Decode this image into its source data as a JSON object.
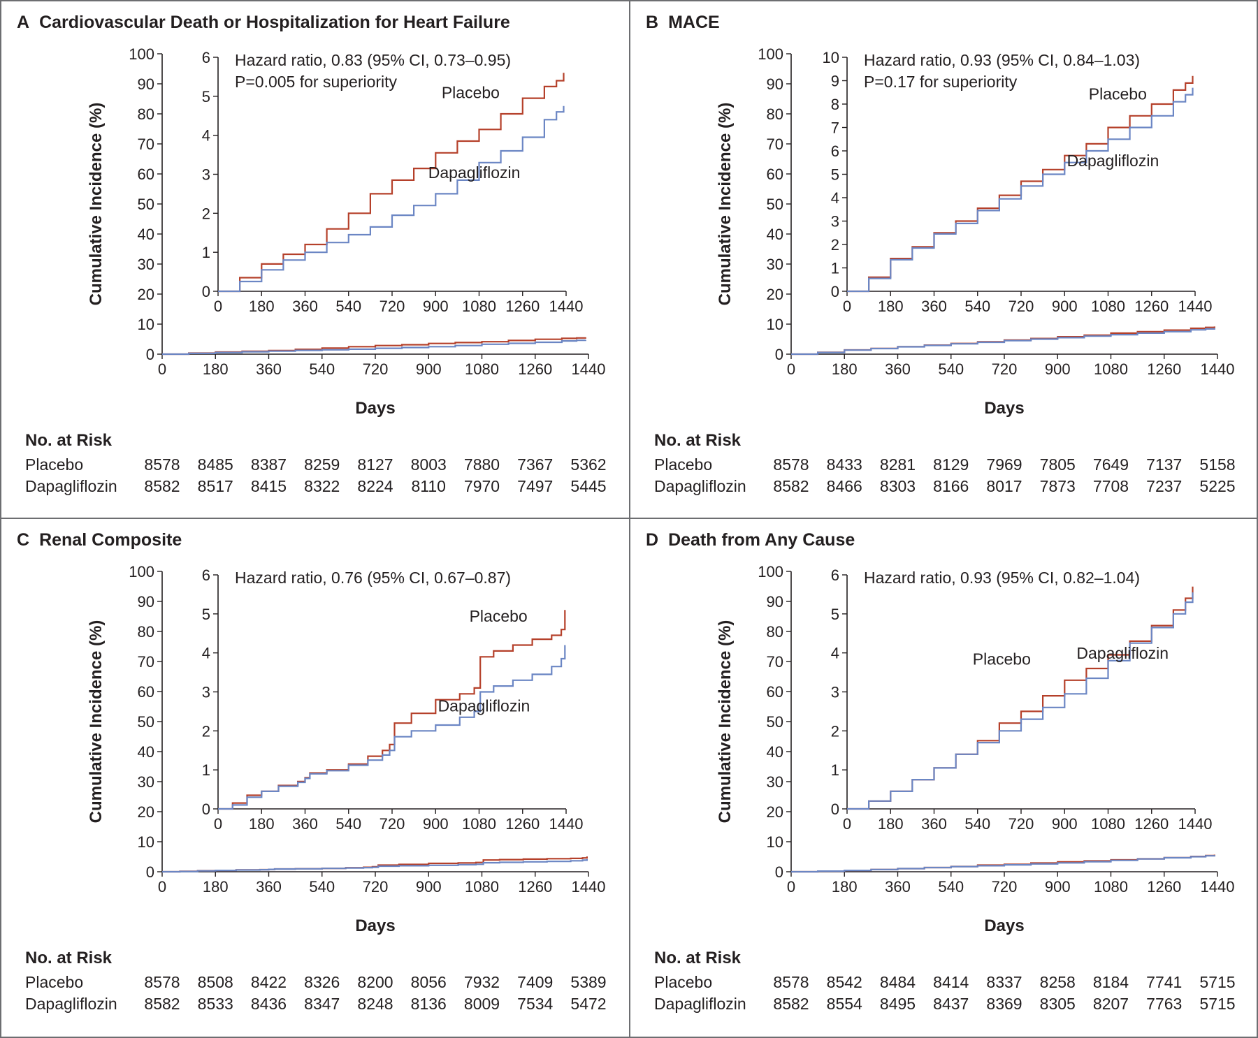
{
  "figure": {
    "colors": {
      "placebo": "#b5402a",
      "dapagliflozin": "#6b86c4"
    },
    "axis_label_y": "Cumulative Incidence (%)",
    "axis_label_x": "Days",
    "risk_header": "No. at Risk"
  },
  "chart_data": [
    {
      "type": "line",
      "panel_letter": "A",
      "title": "Cardiovascular Death or Hospitalization for Heart Failure",
      "xlabel": "Days",
      "ylabel": "Cumulative Incidence (%)",
      "xlim": [
        0,
        1440
      ],
      "ylim": [
        0,
        100
      ],
      "x_ticks": [
        0,
        180,
        360,
        540,
        720,
        900,
        1080,
        1260,
        1440
      ],
      "y_ticks": [
        0,
        10,
        20,
        30,
        40,
        50,
        60,
        70,
        80,
        90,
        100
      ],
      "inset": {
        "xlim": [
          0,
          1440
        ],
        "ylim": [
          0,
          6
        ],
        "x_ticks": [
          0,
          180,
          360,
          540,
          720,
          900,
          1080,
          1260,
          1440
        ],
        "y_ticks": [
          0,
          1,
          2,
          3,
          4,
          5,
          6
        ],
        "annotation": [
          "Hazard ratio, 0.83 (95% CI, 0.73–0.95)",
          "P=0.005 for superiority"
        ],
        "labels": [
          {
            "text": "Placebo",
            "x": 1045,
            "y": 4.95
          },
          {
            "text": "Dapagliflozin",
            "x": 1060,
            "y": 2.9
          }
        ]
      },
      "series": [
        {
          "name": "Placebo",
          "x": [
            0,
            90,
            180,
            270,
            360,
            450,
            540,
            630,
            720,
            810,
            900,
            990,
            1080,
            1170,
            1260,
            1350,
            1400,
            1430
          ],
          "y": [
            0,
            0.35,
            0.7,
            0.95,
            1.2,
            1.6,
            2.0,
            2.5,
            2.85,
            3.15,
            3.55,
            3.85,
            4.15,
            4.55,
            4.95,
            5.25,
            5.4,
            5.6
          ]
        },
        {
          "name": "Dapagliflozin",
          "x": [
            0,
            90,
            180,
            270,
            360,
            450,
            540,
            630,
            720,
            810,
            900,
            990,
            1080,
            1170,
            1260,
            1350,
            1400,
            1430
          ],
          "y": [
            0,
            0.25,
            0.55,
            0.8,
            1.0,
            1.25,
            1.45,
            1.65,
            1.95,
            2.2,
            2.5,
            2.85,
            3.3,
            3.6,
            3.95,
            4.4,
            4.6,
            4.75
          ]
        }
      ],
      "risk": {
        "days": [
          0,
          180,
          360,
          540,
          720,
          900,
          1080,
          1260,
          1440
        ],
        "rows": [
          {
            "label": "Placebo",
            "values": [
              "8578",
              "8485",
              "8387",
              "8259",
              "8127",
              "8003",
              "7880",
              "7367",
              "5362"
            ]
          },
          {
            "label": "Dapagliflozin",
            "values": [
              "8582",
              "8517",
              "8415",
              "8322",
              "8224",
              "8110",
              "7970",
              "7497",
              "5445"
            ]
          }
        ]
      }
    },
    {
      "type": "line",
      "panel_letter": "B",
      "title": "MACE",
      "xlabel": "Days",
      "ylabel": "Cumulative Incidence (%)",
      "xlim": [
        0,
        1440
      ],
      "ylim": [
        0,
        100
      ],
      "x_ticks": [
        0,
        180,
        360,
        540,
        720,
        900,
        1080,
        1260,
        1440
      ],
      "y_ticks": [
        0,
        10,
        20,
        30,
        40,
        50,
        60,
        70,
        80,
        90,
        100
      ],
      "inset": {
        "xlim": [
          0,
          1440
        ],
        "ylim": [
          0,
          10
        ],
        "x_ticks": [
          0,
          180,
          360,
          540,
          720,
          900,
          1080,
          1260,
          1440
        ],
        "y_ticks": [
          0,
          1,
          2,
          3,
          4,
          5,
          6,
          7,
          8,
          9,
          10
        ],
        "annotation": [
          "Hazard ratio, 0.93 (95% CI, 0.84–1.03)",
          "P=0.17 for superiority"
        ],
        "labels": [
          {
            "text": "Placebo",
            "x": 1120,
            "y": 8.2
          },
          {
            "text": "Dapagliflozin",
            "x": 1100,
            "y": 5.35
          }
        ]
      },
      "series": [
        {
          "name": "Placebo",
          "x": [
            0,
            90,
            180,
            270,
            360,
            450,
            540,
            630,
            720,
            810,
            900,
            990,
            1080,
            1170,
            1260,
            1350,
            1400,
            1430
          ],
          "y": [
            0,
            0.6,
            1.4,
            1.9,
            2.5,
            3.0,
            3.55,
            4.1,
            4.7,
            5.2,
            5.8,
            6.3,
            7.0,
            7.5,
            8.0,
            8.6,
            8.9,
            9.2
          ]
        },
        {
          "name": "Dapagliflozin",
          "x": [
            0,
            90,
            180,
            270,
            360,
            450,
            540,
            630,
            720,
            810,
            900,
            990,
            1080,
            1170,
            1260,
            1350,
            1400,
            1430
          ],
          "y": [
            0,
            0.55,
            1.35,
            1.85,
            2.45,
            2.9,
            3.45,
            3.95,
            4.5,
            5.0,
            5.5,
            6.0,
            6.5,
            7.0,
            7.5,
            8.1,
            8.4,
            8.7
          ]
        }
      ],
      "risk": {
        "days": [
          0,
          180,
          360,
          540,
          720,
          900,
          1080,
          1260,
          1440
        ],
        "rows": [
          {
            "label": "Placebo",
            "values": [
              "8578",
              "8433",
              "8281",
              "8129",
              "7969",
              "7805",
              "7649",
              "7137",
              "5158"
            ]
          },
          {
            "label": "Dapagliflozin",
            "values": [
              "8582",
              "8466",
              "8303",
              "8166",
              "8017",
              "7873",
              "7708",
              "7237",
              "5225"
            ]
          }
        ]
      }
    },
    {
      "type": "line",
      "panel_letter": "C",
      "title": "Renal Composite",
      "xlabel": "Days",
      "ylabel": "Cumulative Incidence (%)",
      "xlim": [
        0,
        1440
      ],
      "ylim": [
        0,
        100
      ],
      "x_ticks": [
        0,
        180,
        360,
        540,
        720,
        900,
        1080,
        1260,
        1440
      ],
      "y_ticks": [
        0,
        10,
        20,
        30,
        40,
        50,
        60,
        70,
        80,
        90,
        100
      ],
      "inset": {
        "xlim": [
          0,
          1440
        ],
        "ylim": [
          0,
          6
        ],
        "x_ticks": [
          0,
          180,
          360,
          540,
          720,
          900,
          1080,
          1260,
          1440
        ],
        "y_ticks": [
          0,
          1,
          2,
          3,
          4,
          5,
          6
        ],
        "annotation": [
          "Hazard ratio, 0.76 (95% CI, 0.67–0.87)"
        ],
        "labels": [
          {
            "text": "Placebo",
            "x": 1160,
            "y": 4.8
          },
          {
            "text": "Dapagliflozin",
            "x": 1100,
            "y": 2.5
          }
        ]
      },
      "series": [
        {
          "name": "Placebo",
          "x": [
            0,
            60,
            120,
            180,
            250,
            330,
            360,
            380,
            450,
            540,
            620,
            680,
            710,
            730,
            800,
            900,
            1000,
            1060,
            1085,
            1140,
            1220,
            1300,
            1380,
            1420,
            1435
          ],
          "y": [
            0,
            0.15,
            0.35,
            0.45,
            0.6,
            0.7,
            0.8,
            0.92,
            1.0,
            1.15,
            1.35,
            1.5,
            1.65,
            2.2,
            2.45,
            2.8,
            2.95,
            3.1,
            3.9,
            4.05,
            4.2,
            4.35,
            4.45,
            4.6,
            5.1
          ]
        },
        {
          "name": "Dapagliflozin",
          "x": [
            0,
            60,
            120,
            180,
            250,
            330,
            360,
            380,
            450,
            540,
            620,
            680,
            710,
            730,
            800,
            900,
            1000,
            1060,
            1085,
            1140,
            1220,
            1300,
            1380,
            1420,
            1435
          ],
          "y": [
            0,
            0.1,
            0.3,
            0.45,
            0.58,
            0.68,
            0.78,
            0.9,
            0.98,
            1.12,
            1.25,
            1.38,
            1.5,
            1.85,
            2.0,
            2.15,
            2.35,
            2.5,
            3.0,
            3.15,
            3.3,
            3.45,
            3.65,
            3.85,
            4.2
          ]
        }
      ],
      "risk": {
        "days": [
          0,
          180,
          360,
          540,
          720,
          900,
          1080,
          1260,
          1440
        ],
        "rows": [
          {
            "label": "Placebo",
            "values": [
              "8578",
              "8508",
              "8422",
              "8326",
              "8200",
              "8056",
              "7932",
              "7409",
              "5389"
            ]
          },
          {
            "label": "Dapagliflozin",
            "values": [
              "8582",
              "8533",
              "8436",
              "8347",
              "8248",
              "8136",
              "8009",
              "7534",
              "5472"
            ]
          }
        ]
      }
    },
    {
      "type": "line",
      "panel_letter": "D",
      "title": "Death from Any Cause",
      "xlabel": "Days",
      "ylabel": "Cumulative Incidence (%)",
      "xlim": [
        0,
        1440
      ],
      "ylim": [
        0,
        100
      ],
      "x_ticks": [
        0,
        180,
        360,
        540,
        720,
        900,
        1080,
        1260,
        1440
      ],
      "y_ticks": [
        0,
        10,
        20,
        30,
        40,
        50,
        60,
        70,
        80,
        90,
        100
      ],
      "inset": {
        "xlim": [
          0,
          1440
        ],
        "ylim": [
          0,
          6
        ],
        "x_ticks": [
          0,
          180,
          360,
          540,
          720,
          900,
          1080,
          1260,
          1440
        ],
        "y_ticks": [
          0,
          1,
          2,
          3,
          4,
          5,
          6
        ],
        "annotation": [
          "Hazard ratio, 0.93 (95% CI, 0.82–1.04)"
        ],
        "labels": [
          {
            "text": "Placebo",
            "x": 640,
            "y": 3.7
          },
          {
            "text": "Dapagliflozin",
            "x": 1140,
            "y": 3.85
          }
        ]
      },
      "series": [
        {
          "name": "Placebo",
          "x": [
            0,
            90,
            180,
            270,
            360,
            450,
            540,
            630,
            720,
            810,
            900,
            990,
            1080,
            1170,
            1260,
            1350,
            1400,
            1430
          ],
          "y": [
            0,
            0.2,
            0.45,
            0.75,
            1.05,
            1.4,
            1.75,
            2.2,
            2.5,
            2.9,
            3.3,
            3.6,
            3.95,
            4.3,
            4.7,
            5.1,
            5.4,
            5.7
          ]
        },
        {
          "name": "Dapagliflozin",
          "x": [
            0,
            90,
            180,
            270,
            360,
            450,
            540,
            630,
            720,
            810,
            900,
            990,
            1080,
            1170,
            1260,
            1350,
            1400,
            1430
          ],
          "y": [
            0,
            0.2,
            0.45,
            0.75,
            1.05,
            1.4,
            1.7,
            2.0,
            2.3,
            2.6,
            2.95,
            3.35,
            3.8,
            4.25,
            4.65,
            5.0,
            5.3,
            5.55
          ]
        }
      ],
      "risk": {
        "days": [
          0,
          180,
          360,
          540,
          720,
          900,
          1080,
          1260,
          1440
        ],
        "rows": [
          {
            "label": "Placebo",
            "values": [
              "8578",
              "8542",
              "8484",
              "8414",
              "8337",
              "8258",
              "8184",
              "7741",
              "5715"
            ]
          },
          {
            "label": "Dapagliflozin",
            "values": [
              "8582",
              "8554",
              "8495",
              "8437",
              "8369",
              "8305",
              "8207",
              "7763",
              "5715"
            ]
          }
        ]
      }
    }
  ]
}
